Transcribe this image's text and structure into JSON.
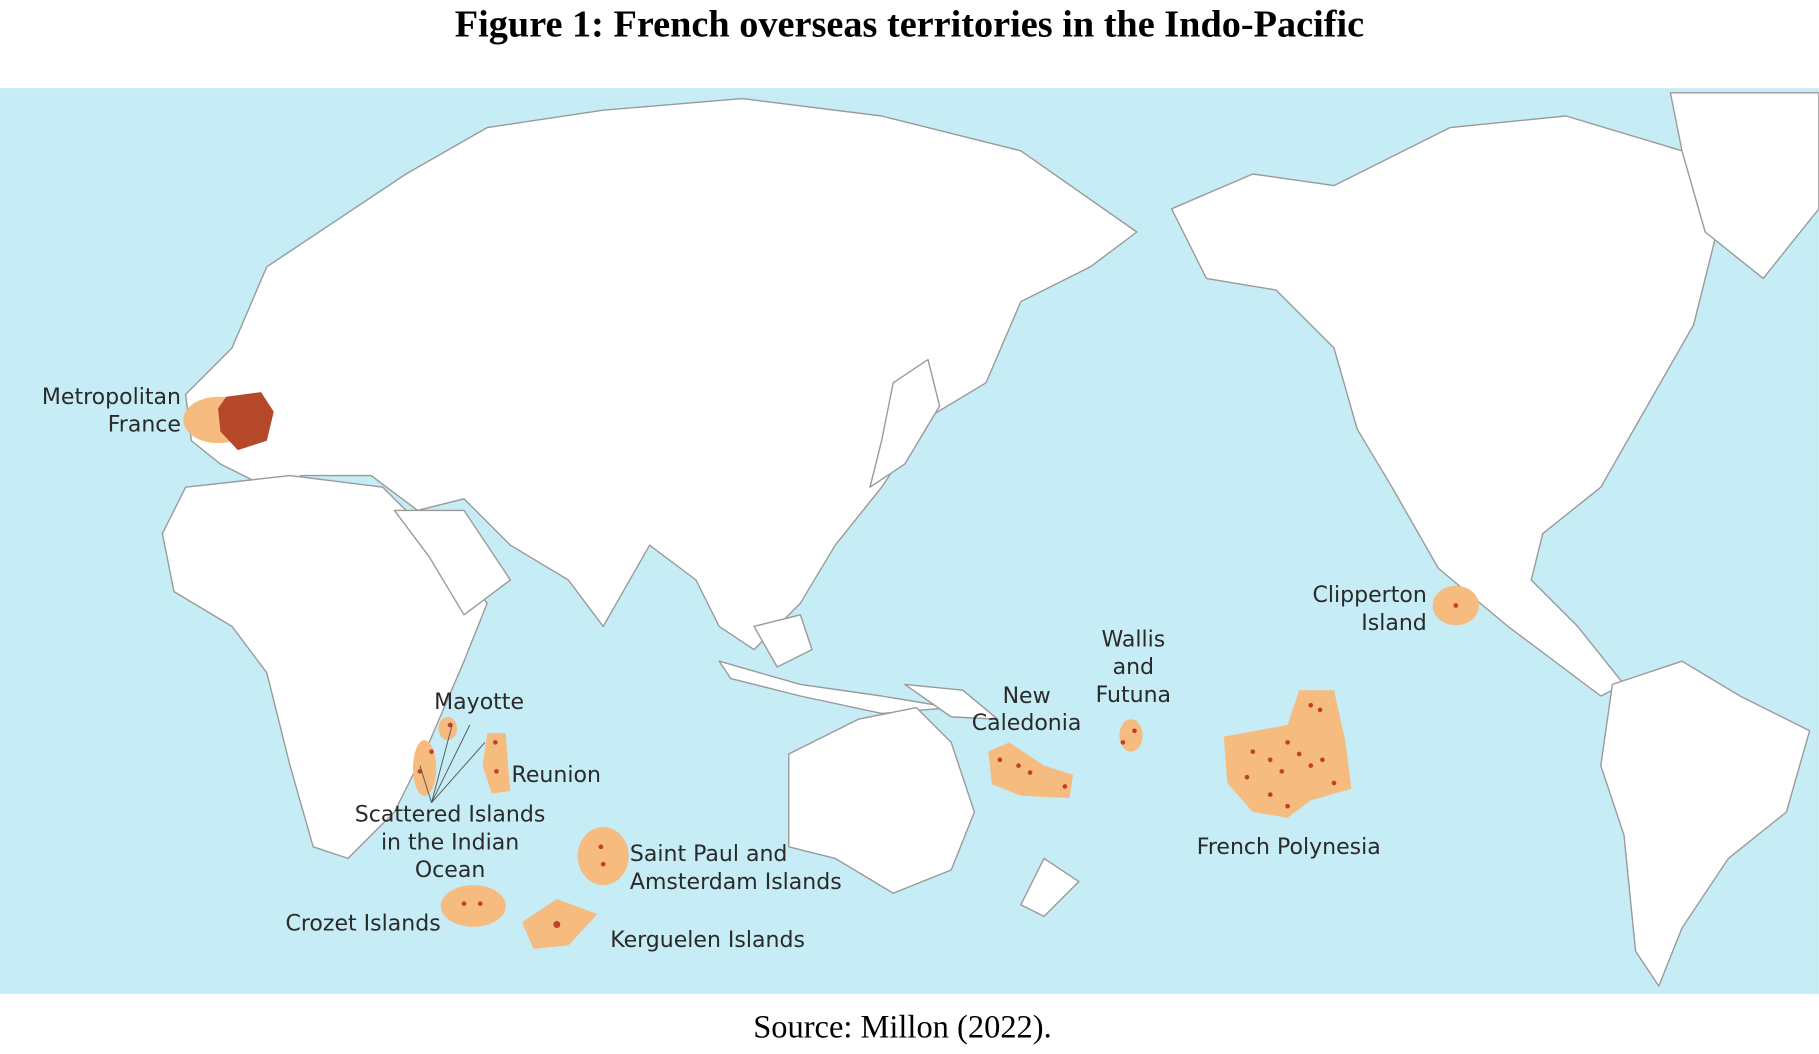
{
  "title": "Figure 1: French overseas territories in the Indo-Pacific",
  "source": "Source: Millon (2022).",
  "territories": [
    {
      "label_lines": [
        "Metropolitan",
        "France"
      ]
    },
    {
      "label_lines": [
        "Mayotte"
      ]
    },
    {
      "label_lines": [
        "Reunion"
      ]
    },
    {
      "label_lines": [
        "Scattered Islands",
        "in the Indian",
        "Ocean"
      ]
    },
    {
      "label_lines": [
        "Saint Paul and",
        "Amsterdam Islands"
      ]
    },
    {
      "label_lines": [
        "Crozet Islands"
      ]
    },
    {
      "label_lines": [
        "Kerguelen Islands"
      ]
    },
    {
      "label_lines": [
        "New",
        "Caledonia"
      ]
    },
    {
      "label_lines": [
        "Wallis",
        "and",
        "Futuna"
      ]
    },
    {
      "label_lines": [
        "Clipperton",
        "Island"
      ]
    },
    {
      "label_lines": [
        "French Polynesia"
      ]
    }
  ]
}
